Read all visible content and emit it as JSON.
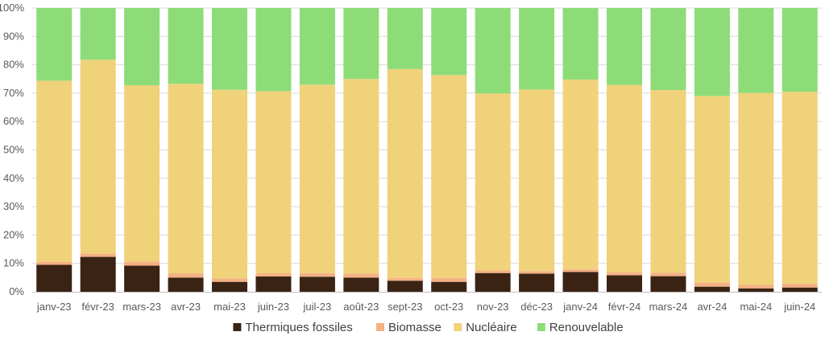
{
  "chart_data": {
    "type": "bar",
    "stacked": true,
    "percent_stacked": true,
    "title": "",
    "xlabel": "",
    "ylabel": "",
    "ylim": [
      0,
      100
    ],
    "yticks": [
      "0%",
      "10%",
      "20%",
      "30%",
      "40%",
      "50%",
      "60%",
      "70%",
      "80%",
      "90%",
      "100%"
    ],
    "grid": true,
    "legend_position": "bottom",
    "categories": [
      "janv-23",
      "févr-23",
      "mars-23",
      "avr-23",
      "mai-23",
      "juin-23",
      "juil-23",
      "août-23",
      "sept-23",
      "oct-23",
      "nov-23",
      "déc-23",
      "janv-24",
      "févr-24",
      "mars-24",
      "avr-24",
      "mai-24",
      "juin-24"
    ],
    "series": [
      {
        "name": "Thermiques fossiles",
        "color": "#3b2314",
        "values": [
          9.5,
          12.3,
          9.2,
          5.0,
          3.5,
          5.4,
          5.3,
          5.0,
          3.9,
          3.5,
          6.6,
          6.4,
          7.0,
          5.8,
          5.5,
          1.8,
          1.2,
          1.5
        ]
      },
      {
        "name": "Biomasse",
        "color": "#f4b183",
        "values": [
          1.0,
          1.2,
          1.4,
          1.5,
          1.2,
          1.1,
          1.3,
          1.4,
          1.0,
          1.4,
          0.9,
          0.9,
          1.0,
          1.1,
          1.2,
          1.4,
          1.3,
          1.3
        ]
      },
      {
        "name": "Nucléaire",
        "color": "#efd27a",
        "values": [
          63.9,
          68.3,
          62.2,
          66.8,
          66.5,
          64.2,
          66.4,
          68.6,
          73.6,
          71.5,
          62.4,
          64.0,
          66.8,
          66.0,
          64.4,
          65.8,
          67.6,
          67.7
        ]
      },
      {
        "name": "Renouvelable",
        "color": "#8ddc77",
        "values": [
          25.6,
          18.2,
          27.2,
          26.7,
          28.8,
          29.3,
          27.0,
          25.0,
          21.5,
          23.6,
          30.1,
          28.7,
          25.2,
          27.1,
          28.9,
          31.0,
          29.9,
          29.5
        ]
      }
    ]
  }
}
